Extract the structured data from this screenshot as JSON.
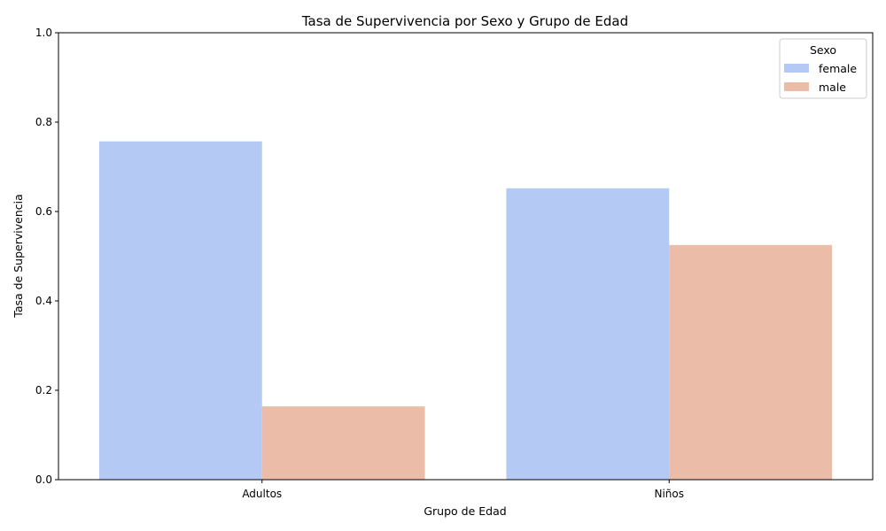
{
  "chart_data": {
    "type": "bar",
    "title": "Tasa de Supervivencia por Sexo y Grupo de Edad",
    "xlabel": "Grupo de Edad",
    "ylabel": "Tasa de Supervivencia",
    "categories": [
      "Adultos",
      "Niños"
    ],
    "series": [
      {
        "name": "female",
        "color": "#b4c9f3",
        "values": [
          0.757,
          0.652
        ]
      },
      {
        "name": "male",
        "color": "#ebbca7",
        "values": [
          0.164,
          0.525
        ]
      }
    ],
    "ylim": [
      0,
      1.0
    ],
    "yticks": [
      "0.0",
      "0.2",
      "0.4",
      "0.6",
      "0.8",
      "1.0"
    ],
    "grid": false,
    "legend": {
      "title": "Sexo",
      "placement": "top-right"
    }
  }
}
